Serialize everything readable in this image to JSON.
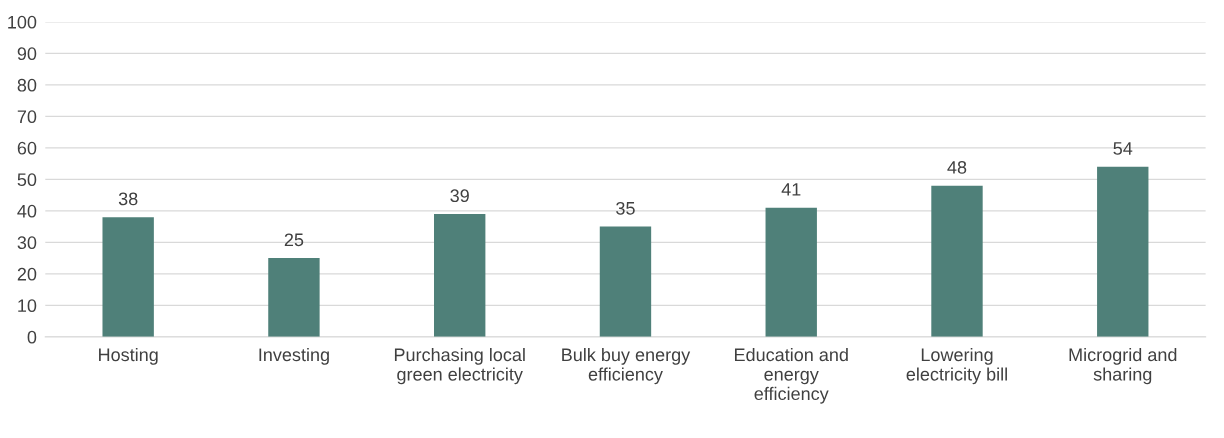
{
  "chart_data": {
    "type": "bar",
    "categories": [
      "Hosting",
      "Investing",
      "Purchasing local\ngreen electricity",
      "Bulk buy energy\nefficiency",
      "Education and\nenergy\nefficiency",
      "Lowering\nelectricity bill",
      "Microgrid and\nsharing"
    ],
    "values": [
      38,
      25,
      39,
      35,
      41,
      48,
      54
    ],
    "color": "#4f8079",
    "ylim": [
      0,
      100
    ],
    "yticks": [
      0,
      10,
      20,
      30,
      40,
      50,
      60,
      70,
      80,
      90,
      100
    ],
    "grid": "y",
    "data_labels": true
  }
}
